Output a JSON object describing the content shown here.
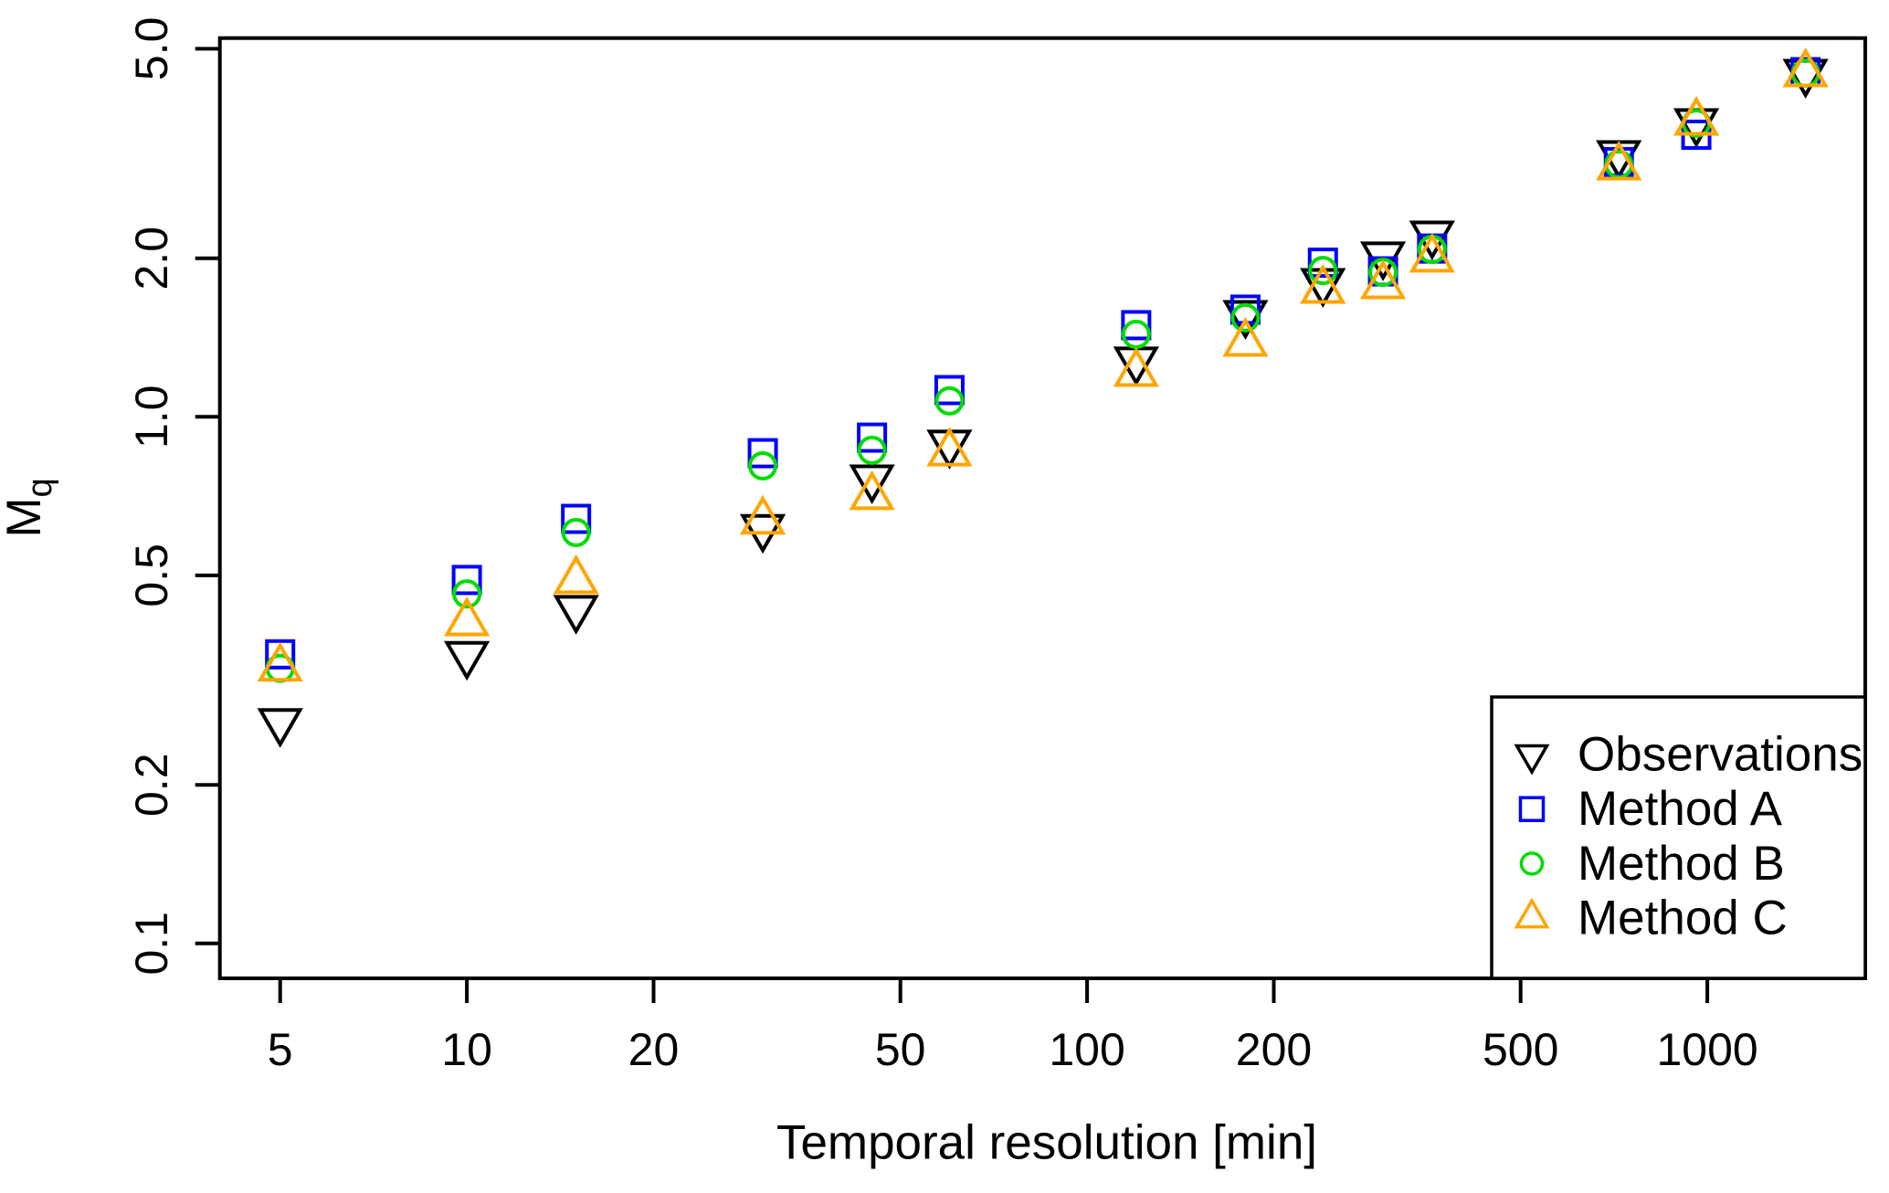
{
  "chart_data": {
    "type": "scatter",
    "title": "",
    "xlabel": "Temporal resolution [min]",
    "ylabel_base": "M",
    "ylabel_subscript": "q",
    "x_scale": "log",
    "y_scale": "log",
    "xlim": [
      3.99,
      1806
    ],
    "ylim": [
      0.086,
      5.24
    ],
    "grid": false,
    "x_ticks": {
      "values": [
        5,
        10,
        20,
        50,
        100,
        200,
        500,
        1000
      ],
      "labels": [
        "5",
        "10",
        "20",
        "50",
        "100",
        "200",
        "500",
        "1000"
      ]
    },
    "y_ticks": {
      "values": [
        5,
        2,
        1,
        0.5,
        0.2,
        0.1
      ],
      "labels": [
        "5.0",
        "2.0",
        "1.0",
        "0.5",
        "0.2",
        "0.1"
      ]
    },
    "x": [
      5,
      10,
      15,
      30,
      45,
      60,
      120,
      180,
      240,
      300,
      360,
      720,
      960,
      1440
    ],
    "series": [
      {
        "name": "Observations",
        "marker": "triangle-down",
        "color": "#000000",
        "values": [
          0.264,
          0.354,
          0.433,
          0.617,
          0.766,
          0.892,
          1.283,
          1.572,
          1.808,
          2.031,
          2.226,
          3.163,
          3.638,
          4.513
        ]
      },
      {
        "name": "Method A",
        "marker": "square",
        "color": "#0000FF",
        "values": [
          0.354,
          0.49,
          0.64,
          0.853,
          0.913,
          1.124,
          1.493,
          1.598,
          1.962,
          1.889,
          2.087,
          3.046,
          3.433,
          4.513
        ]
      },
      {
        "name": "Method B",
        "marker": "circle",
        "color": "#00DC00",
        "values": [
          0.333,
          0.461,
          0.603,
          0.807,
          0.864,
          1.072,
          1.434,
          1.542,
          1.896,
          1.881,
          2.079,
          3.016,
          3.609,
          4.495
        ]
      },
      {
        "name": "Method C",
        "marker": "triangle-up",
        "color": "#FFA500",
        "values": [
          0.333,
          0.406,
          0.488,
          0.633,
          0.705,
          0.853,
          1.208,
          1.378,
          1.737,
          1.772,
          1.991,
          2.979,
          3.623,
          4.477
        ]
      }
    ],
    "legend": {
      "position": "bottom-right"
    }
  }
}
